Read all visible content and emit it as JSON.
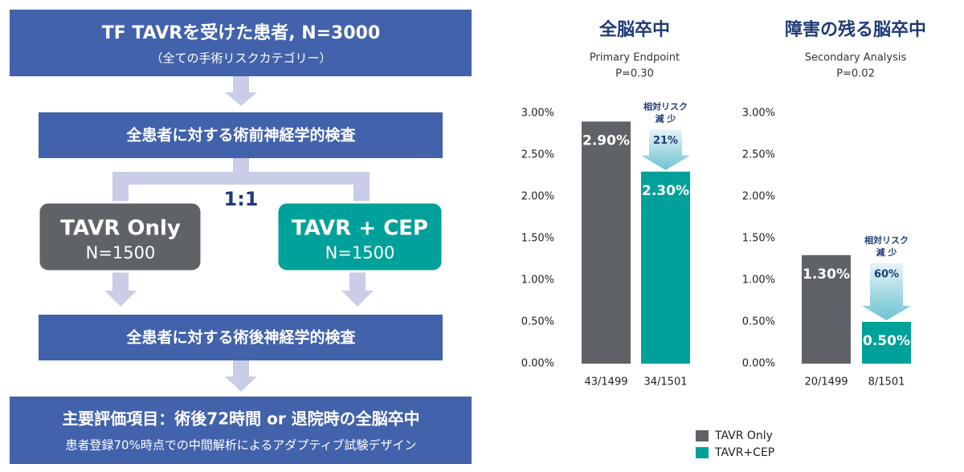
{
  "flow": {
    "box1": {
      "title": "TF TAVRを受けた患者, N=3000",
      "subtitle": "（全ての手術リスクカテゴリー）"
    },
    "box2": "全患者に対する術前神経学的検査",
    "ratio": "1:1",
    "arm1": {
      "title": "TAVR Only",
      "subtitle": "N=1500"
    },
    "arm2": {
      "title": "TAVR + CEP",
      "subtitle": "N=1500"
    },
    "box3": "全患者に対する術後神経学的検査",
    "box4": {
      "title": "主要評価項目：術後72時間 or 退院時の全脳卒中",
      "subtitle": "患者登録70%時点での中間解析によるアダプティブ試験デザイン"
    }
  },
  "chart_data": [
    {
      "type": "bar",
      "title": "全脳卒中",
      "subtitle": "Primary Endpoint",
      "p_value": "P=0.30",
      "categories": [
        "43/1499",
        "34/1501"
      ],
      "values": [
        2.9,
        2.3
      ],
      "value_labels": [
        "2.90%",
        "2.30%"
      ],
      "colors": [
        "#5f6368",
        "#00a19a"
      ],
      "ylim": [
        0,
        3
      ],
      "yticks": [
        {
          "value": 0,
          "label": "0.00%"
        },
        {
          "value": 0.5,
          "label": "0.50%"
        },
        {
          "value": 1,
          "label": "1.00%"
        },
        {
          "value": 1.5,
          "label": "1.50%"
        },
        {
          "value": 2,
          "label": "2.00%"
        },
        {
          "value": 2.5,
          "label": "2.50%"
        },
        {
          "value": 3,
          "label": "3.00%"
        }
      ],
      "annotation": {
        "line1": "相対リスク",
        "line2": "減 少",
        "label": "21%"
      }
    },
    {
      "type": "bar",
      "title": "障害の残る脳卒中",
      "subtitle": "Secondary Analysis",
      "p_value": "P=0.02",
      "categories": [
        "20/1499",
        "8/1501"
      ],
      "values": [
        1.3,
        0.5
      ],
      "value_labels": [
        "1.30%",
        "0.50%"
      ],
      "colors": [
        "#5f6368",
        "#00a19a"
      ],
      "ylim": [
        0,
        3
      ],
      "yticks": [
        {
          "value": 0,
          "label": "0.00%"
        },
        {
          "value": 0.5,
          "label": "0.50%"
        },
        {
          "value": 1,
          "label": "1.00%"
        },
        {
          "value": 1.5,
          "label": "1.50%"
        },
        {
          "value": 2,
          "label": "2.00%"
        },
        {
          "value": 2.5,
          "label": "2.50%"
        },
        {
          "value": 3,
          "label": "3.00%"
        }
      ],
      "annotation": {
        "line1": "相対リスク",
        "line2": "減 少",
        "label": "60%"
      }
    }
  ],
  "legend": [
    {
      "name": "TAVR Only",
      "color": "#5f6368"
    },
    {
      "name": "TAVR+CEP",
      "color": "#00a19a"
    }
  ]
}
